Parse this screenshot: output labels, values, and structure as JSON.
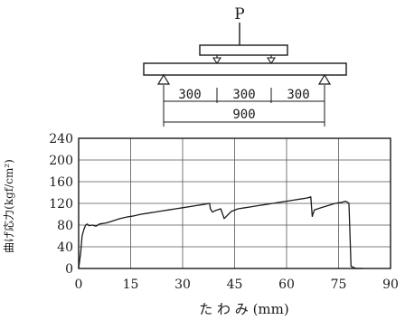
{
  "diagram": {
    "load_label": "P",
    "span_labels": [
      "300",
      "300",
      "300"
    ],
    "total_span_label": "900"
  },
  "chart_data": {
    "type": "line",
    "title": "",
    "xlabel": "た わ み (mm)",
    "ylabel": "曲げ応力(kgf/cm²)",
    "xlim": [
      0,
      90
    ],
    "ylim": [
      0,
      240
    ],
    "xticks": [
      0,
      15,
      30,
      45,
      60,
      75,
      90
    ],
    "yticks": [
      0,
      40,
      80,
      120,
      160,
      200,
      240
    ],
    "grid": true,
    "series": [
      {
        "name": "",
        "x": [
          0,
          0.6,
          1.0,
          1.5,
          2.0,
          2.5,
          3.0,
          4.0,
          5.0,
          6.0,
          8.0,
          10.0,
          12.0,
          14.0,
          16.0,
          18.0,
          20.0,
          22.0,
          24.0,
          26.0,
          28.0,
          30.0,
          32.0,
          34.0,
          36.0,
          37.8,
          38.0,
          38.6,
          39.2,
          40.0,
          41.0,
          42.0,
          44.0,
          46.0,
          48.0,
          50.0,
          52.0,
          54.0,
          56.0,
          58.0,
          60.0,
          62.0,
          64.0,
          66.0,
          67.0,
          67.4,
          68.0,
          70.0,
          72.0,
          74.0,
          76.0,
          77.0,
          77.6,
          78.0,
          78.6,
          80.0,
          82.0
        ],
        "y": [
          0,
          30,
          60,
          72,
          80,
          82,
          79,
          80,
          78,
          82,
          84,
          88,
          92,
          95,
          97,
          100,
          102,
          104,
          106,
          108,
          110,
          112,
          114,
          116,
          118,
          120,
          110,
          104,
          106,
          108,
          110,
          92,
          105,
          110,
          112,
          114,
          116,
          118,
          120,
          122,
          124,
          126,
          128,
          130,
          132,
          96,
          108,
          112,
          116,
          120,
          122,
          124,
          122,
          120,
          4,
          0,
          0
        ]
      }
    ]
  }
}
